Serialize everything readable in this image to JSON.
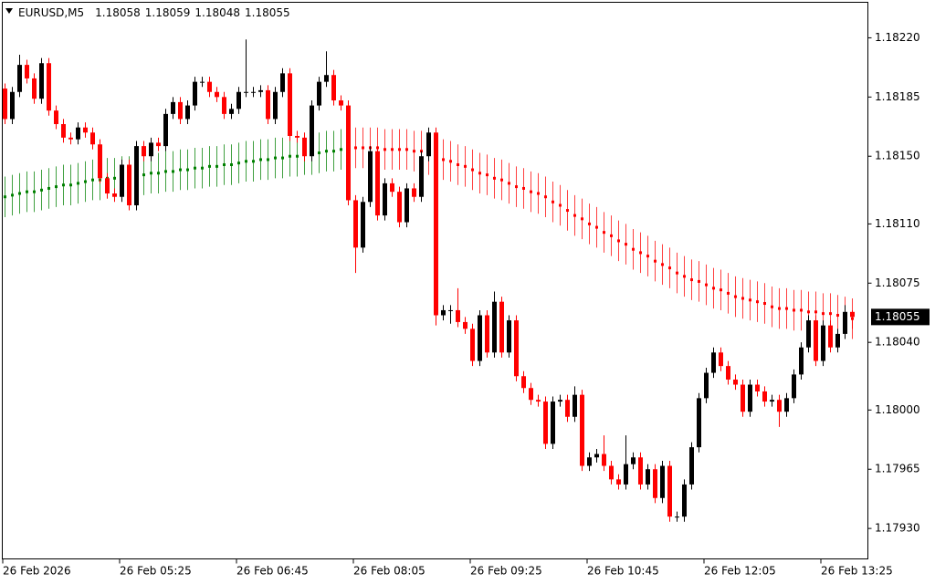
{
  "chart_data": {
    "type": "candlestick",
    "symbol": "EURUSD,M5",
    "header_values": [
      1.18058,
      1.18059,
      1.18048,
      1.18055
    ],
    "last_price": 1.18055,
    "up_color": "#000000",
    "down_color": "#ff0000",
    "ylim": [
      1.17912,
      1.18241
    ],
    "yticks": [
      {
        "value": 1.1822,
        "label": "1.18220"
      },
      1.18185,
      {
        "value": 1.1815,
        "label": "1.18150"
      },
      {
        "value": 1.1811,
        "label": "1.18110"
      },
      1.18075,
      {
        "value": 1.1804,
        "label": "1.18040"
      },
      {
        "value": 1.18,
        "label": "1.18000"
      },
      1.17965,
      {
        "value": 1.1793,
        "label": "1.17930"
      }
    ],
    "xticks": [
      {
        "value": 0,
        "label": "26 Feb 2026"
      },
      {
        "value": 16,
        "label": "26 Feb 05:25"
      },
      {
        "value": 32,
        "label": "26 Feb 06:45"
      },
      {
        "value": 48,
        "label": "26 Feb 08:05"
      },
      {
        "value": 64,
        "label": "26 Feb 09:25"
      },
      {
        "value": 80,
        "label": "26 Feb 10:45"
      },
      {
        "value": 96,
        "label": "26 Feb 12:05"
      },
      {
        "value": 112,
        "label": "26 Feb 13:25"
      }
    ],
    "ohlc": [
      [
        1.1819,
        1.18193,
        1.18169,
        1.18172
      ],
      [
        1.18172,
        1.18191,
        1.18169,
        1.18188
      ],
      [
        1.18188,
        1.1821,
        1.18185,
        1.18204
      ],
      [
        1.18204,
        1.18207,
        1.18193,
        1.18196
      ],
      [
        1.18196,
        1.18199,
        1.18181,
        1.18184
      ],
      [
        1.18184,
        1.18208,
        1.18181,
        1.18205
      ],
      [
        1.18205,
        1.18208,
        1.18174,
        1.18177
      ],
      [
        1.18177,
        1.1818,
        1.18166,
        1.18169
      ],
      [
        1.18169,
        1.18172,
        1.18158,
        1.18161
      ],
      [
        1.18161,
        1.18164,
        1.18157,
        1.1816
      ],
      [
        1.1816,
        1.1817,
        1.18157,
        1.18167
      ],
      [
        1.18167,
        1.1817,
        1.18161,
        1.18164
      ],
      [
        1.18164,
        1.18167,
        1.18154,
        1.18157
      ],
      [
        1.18157,
        1.1816,
        1.18134,
        1.18137
      ],
      [
        1.18137,
        1.1814,
        1.18125,
        1.18128
      ],
      [
        1.18128,
        1.18131,
        1.18123,
        1.18126
      ],
      [
        1.18126,
        1.18148,
        1.18123,
        1.18145
      ],
      [
        1.18145,
        1.18148,
        1.18118,
        1.18121
      ],
      [
        1.18121,
        1.18159,
        1.18118,
        1.18156
      ],
      [
        1.18156,
        1.18159,
        1.18147,
        1.1815
      ],
      [
        1.1815,
        1.18161,
        1.18147,
        1.18158
      ],
      [
        1.18158,
        1.18161,
        1.18153,
        1.18156
      ],
      [
        1.18156,
        1.18178,
        1.18153,
        1.18175
      ],
      [
        1.18175,
        1.18185,
        1.18172,
        1.18182
      ],
      [
        1.18182,
        1.18185,
        1.18169,
        1.18172
      ],
      [
        1.18172,
        1.18183,
        1.18169,
        1.1818
      ],
      [
        1.1818,
        1.18197,
        1.18177,
        1.18194
      ],
      [
        1.18194,
        1.18197,
        1.18191,
        1.18194
      ],
      [
        1.18194,
        1.18197,
        1.18185,
        1.18188
      ],
      [
        1.18188,
        1.18191,
        1.18182,
        1.18185
      ],
      [
        1.18185,
        1.18188,
        1.18172,
        1.18175
      ],
      [
        1.18175,
        1.18181,
        1.18172,
        1.18178
      ],
      [
        1.18178,
        1.18191,
        1.18175,
        1.18188
      ],
      [
        1.18188,
        1.18219,
        1.18185,
        1.18188
      ],
      [
        1.18188,
        1.18191,
        1.18185,
        1.18188
      ],
      [
        1.18188,
        1.18192,
        1.18185,
        1.18189
      ],
      [
        1.18189,
        1.18192,
        1.18169,
        1.18172
      ],
      [
        1.18172,
        1.18191,
        1.18169,
        1.18188
      ],
      [
        1.18188,
        1.18202,
        1.18185,
        1.18199
      ],
      [
        1.18199,
        1.18202,
        1.18159,
        1.18162
      ],
      [
        1.18162,
        1.18165,
        1.18158,
        1.18161
      ],
      [
        1.18161,
        1.18164,
        1.18147,
        1.1815
      ],
      [
        1.1815,
        1.18183,
        1.18147,
        1.1818
      ],
      [
        1.1818,
        1.18197,
        1.18177,
        1.18194
      ],
      [
        1.18194,
        1.18212,
        1.18191,
        1.18198
      ],
      [
        1.18198,
        1.18201,
        1.1818,
        1.18183
      ],
      [
        1.18183,
        1.18186,
        1.18177,
        1.1818
      ],
      [
        1.1818,
        1.18183,
        1.18121,
        1.18124
      ],
      [
        1.18124,
        1.18127,
        1.18081,
        1.18096
      ],
      [
        1.18096,
        1.18126,
        1.18093,
        1.18123
      ],
      [
        1.18123,
        1.18156,
        1.1812,
        1.18153
      ],
      [
        1.18153,
        1.18156,
        1.18112,
        1.18115
      ],
      [
        1.18115,
        1.18137,
        1.18112,
        1.18134
      ],
      [
        1.18134,
        1.18137,
        1.18126,
        1.18129
      ],
      [
        1.18129,
        1.18132,
        1.18108,
        1.18111
      ],
      [
        1.18111,
        1.18134,
        1.18108,
        1.18131
      ],
      [
        1.18131,
        1.18134,
        1.18123,
        1.18126
      ],
      [
        1.18126,
        1.18153,
        1.18123,
        1.1815
      ],
      [
        1.1815,
        1.18167,
        1.18147,
        1.18164
      ],
      [
        1.18164,
        1.18167,
        1.1805,
        1.18056
      ],
      [
        1.18056,
        1.18062,
        1.18053,
        1.18059
      ],
      [
        1.18059,
        1.18062,
        1.18051,
        1.18059
      ],
      [
        1.18059,
        1.18072,
        1.18049,
        1.18052
      ],
      [
        1.18052,
        1.18055,
        1.18045,
        1.18048
      ],
      [
        1.18048,
        1.18051,
        1.18026,
        1.18029
      ],
      [
        1.18029,
        1.18059,
        1.18026,
        1.18056
      ],
      [
        1.18056,
        1.18059,
        1.18031,
        1.18034
      ],
      [
        1.18034,
        1.1807,
        1.18031,
        1.18064
      ],
      [
        1.18064,
        1.18067,
        1.18031,
        1.18034
      ],
      [
        1.18034,
        1.18056,
        1.18031,
        1.18053
      ],
      [
        1.18053,
        1.18056,
        1.18017,
        1.1802
      ],
      [
        1.1802,
        1.18023,
        1.1801,
        1.18013
      ],
      [
        1.18013,
        1.18016,
        1.18003,
        1.18006
      ],
      [
        1.18006,
        1.18009,
        1.18002,
        1.18005
      ],
      [
        1.18005,
        1.18008,
        1.17977,
        1.1798
      ],
      [
        1.1798,
        1.18008,
        1.17977,
        1.18005
      ],
      [
        1.18005,
        1.18009,
        1.18002,
        1.18006
      ],
      [
        1.18006,
        1.18009,
        1.17993,
        1.17996
      ],
      [
        1.17996,
        1.18014,
        1.17993,
        1.18009
      ],
      [
        1.18009,
        1.18012,
        1.17964,
        1.17967
      ],
      [
        1.17967,
        1.17975,
        1.17964,
        1.17972
      ],
      [
        1.17972,
        1.17977,
        1.17969,
        1.17974
      ],
      [
        1.17974,
        1.17985,
        1.17964,
        1.17967
      ],
      [
        1.17967,
        1.1797,
        1.17956,
        1.17959
      ],
      [
        1.17959,
        1.17962,
        1.17953,
        1.17956
      ],
      [
        1.17956,
        1.17985,
        1.17953,
        1.17968
      ],
      [
        1.17968,
        1.17975,
        1.17965,
        1.17972
      ],
      [
        1.17972,
        1.17975,
        1.17953,
        1.17956
      ],
      [
        1.17956,
        1.17968,
        1.17953,
        1.17965
      ],
      [
        1.17965,
        1.17968,
        1.17945,
        1.17948
      ],
      [
        1.17948,
        1.1797,
        1.17945,
        1.17967
      ],
      [
        1.17967,
        1.1797,
        1.17934,
        1.17937
      ],
      [
        1.17937,
        1.1794,
        1.17934,
        1.17937
      ],
      [
        1.17937,
        1.17959,
        1.17934,
        1.17956
      ],
      [
        1.17956,
        1.17981,
        1.17953,
        1.17978
      ],
      [
        1.17978,
        1.1801,
        1.17975,
        1.18007
      ],
      [
        1.18007,
        1.18025,
        1.18004,
        1.18022
      ],
      [
        1.18022,
        1.18037,
        1.18019,
        1.18034
      ],
      [
        1.18034,
        1.18037,
        1.18023,
        1.18026
      ],
      [
        1.18026,
        1.18029,
        1.18015,
        1.18018
      ],
      [
        1.18018,
        1.18021,
        1.18012,
        1.18015
      ],
      [
        1.18015,
        1.18018,
        1.17996,
        1.17999
      ],
      [
        1.17999,
        1.18018,
        1.17996,
        1.18015
      ],
      [
        1.18015,
        1.18018,
        1.18008,
        1.18011
      ],
      [
        1.18011,
        1.18014,
        1.18002,
        1.18005
      ],
      [
        1.18005,
        1.18009,
        1.18002,
        1.18006
      ],
      [
        1.18006,
        1.18009,
        1.1799,
        1.17999
      ],
      [
        1.17999,
        1.1801,
        1.17996,
        1.18007
      ],
      [
        1.18007,
        1.18024,
        1.18004,
        1.18021
      ],
      [
        1.18021,
        1.1804,
        1.18018,
        1.18037
      ],
      [
        1.18037,
        1.18056,
        1.18034,
        1.18053
      ],
      [
        1.18053,
        1.18056,
        1.18026,
        1.18029
      ],
      [
        1.18029,
        1.18053,
        1.18026,
        1.1805
      ],
      [
        1.1805,
        1.18053,
        1.18034,
        1.18037
      ],
      [
        1.18037,
        1.18048,
        1.18034,
        1.18045
      ],
      [
        1.18045,
        1.18062,
        1.18042,
        1.18058
      ],
      [
        1.18058,
        1.18059,
        1.18048,
        1.18055
      ]
    ],
    "indicator": {
      "band": 0.00012,
      "series": [
        {
          "color": "#008000",
          "values": [
            1.18126,
            1.18127,
            1.18128,
            1.18129,
            1.18129,
            1.1813,
            1.18131,
            1.18132,
            1.18133,
            1.18133,
            1.18134,
            1.18135,
            1.18136,
            1.18136,
            1.18137,
            1.18137,
            1.18138,
            1.18138,
            1.18139,
            1.18139,
            1.1814,
            1.1814,
            1.18141,
            1.18141,
            1.18142,
            1.18142,
            1.18143,
            1.18143,
            1.18144,
            1.18144,
            1.18145,
            1.18145,
            1.18146,
            1.18147,
            1.18147,
            1.18148,
            1.18148,
            1.18149,
            1.18149,
            1.1815,
            1.1815,
            1.18151,
            1.18151,
            1.18152,
            1.18153,
            1.18153,
            1.18154,
            null,
            null,
            null,
            null,
            null,
            null,
            null,
            null,
            null,
            null,
            null,
            null,
            null,
            null,
            null,
            null,
            null,
            null,
            null,
            null,
            null,
            null,
            null,
            null,
            null,
            null,
            null,
            null,
            null,
            null,
            null,
            null,
            null,
            null,
            null,
            null,
            null,
            null,
            null,
            null,
            null,
            null,
            null,
            null,
            null,
            null,
            null,
            null,
            null,
            null,
            null,
            null,
            null,
            null,
            null,
            null,
            null,
            null,
            null,
            null,
            null,
            null,
            null,
            null,
            null,
            null,
            null,
            null,
            null,
            null
          ]
        },
        {
          "color": "#ff0000",
          "values": [
            null,
            null,
            null,
            null,
            null,
            null,
            null,
            null,
            null,
            null,
            null,
            null,
            null,
            null,
            null,
            null,
            null,
            null,
            null,
            null,
            null,
            null,
            null,
            null,
            null,
            null,
            null,
            null,
            null,
            null,
            null,
            null,
            null,
            null,
            null,
            null,
            null,
            null,
            null,
            null,
            null,
            null,
            null,
            null,
            null,
            null,
            null,
            1.18155,
            1.18155,
            1.18155,
            1.18155,
            1.18155,
            1.18154,
            1.18154,
            1.18154,
            1.18154,
            1.18153,
            1.18153,
            1.18151,
            1.1815,
            1.18148,
            1.18147,
            1.18145,
            1.18144,
            1.18142,
            1.1814,
            1.18139,
            1.18137,
            1.18136,
            1.18134,
            1.18132,
            1.18131,
            1.18129,
            1.18128,
            1.18126,
            1.18123,
            1.18121,
            1.18118,
            1.18115,
            1.18113,
            1.1811,
            1.18108,
            1.18105,
            1.18103,
            1.181,
            1.18098,
            1.18095,
            1.18093,
            1.18091,
            1.18088,
            1.18086,
            1.18084,
            1.18081,
            1.18079,
            1.18077,
            1.18076,
            1.18074,
            1.18072,
            1.18071,
            1.18069,
            1.18067,
            1.18066,
            1.18065,
            1.18064,
            1.18063,
            1.18061,
            1.1806,
            1.1806,
            1.18059,
            1.18059,
            1.18058,
            1.18058,
            1.18057,
            1.18057,
            1.18056,
            1.18055,
            1.18054
          ]
        }
      ]
    }
  }
}
